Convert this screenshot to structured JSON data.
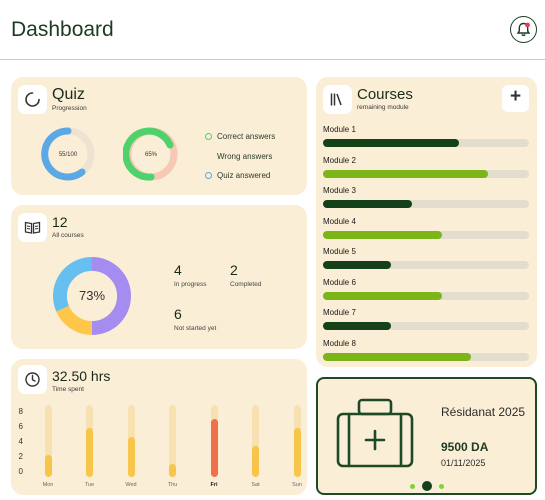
{
  "header": {
    "title": "Dashboard",
    "notification_icon": "bell-icon"
  },
  "quiz": {
    "title": "Quiz",
    "subtitle": "Progression",
    "ring1_label": "55/100",
    "ring2_label": "65%",
    "legend": [
      "Correct answers",
      "Wrong answers",
      "Quiz answered"
    ],
    "colors": {
      "correct": "#4fd26b",
      "wrong": "#f6c9b6",
      "answered": "#5aa9e6"
    }
  },
  "courses_summary": {
    "count": "12",
    "subtitle": "All courses",
    "donut_center": "73%",
    "in_progress_value": "4",
    "in_progress_label": "In progress",
    "completed_value": "2",
    "completed_label": "Completed",
    "not_started_value": "6",
    "not_started_label": "Not started yet"
  },
  "time": {
    "title": "32.50 hrs",
    "subtitle": "Time spent",
    "yticks": [
      "8",
      "6",
      "4",
      "2",
      "0"
    ],
    "days": [
      "Mon",
      "Tue",
      "Wed",
      "Thu",
      "Fri",
      "Sat",
      "Sun"
    ],
    "values": [
      2.5,
      5.5,
      4.5,
      1.5,
      6.5,
      3.5,
      5.5
    ],
    "active_day_index": 4
  },
  "courses": {
    "title": "Courses",
    "subtitle": "remaining module",
    "modules": [
      {
        "label": "Module 1",
        "progress": 0.66,
        "color": "#14401a"
      },
      {
        "label": "Module 2",
        "progress": 0.8,
        "color": "#7cb518"
      },
      {
        "label": "Module 3",
        "progress": 0.43,
        "color": "#14401a"
      },
      {
        "label": "Module 4",
        "progress": 0.58,
        "color": "#7cb518"
      },
      {
        "label": "Module 5",
        "progress": 0.33,
        "color": "#14401a"
      },
      {
        "label": "Module 6",
        "progress": 0.58,
        "color": "#7cb518"
      },
      {
        "label": "Module 7",
        "progress": 0.33,
        "color": "#14401a"
      },
      {
        "label": "Module 8",
        "progress": 0.72,
        "color": "#7cb518"
      }
    ]
  },
  "promo": {
    "title": "Résidanat 2025",
    "price": "9500 DA",
    "date": "01/11/2025",
    "icon": "medical-bag-icon",
    "active_slide": 1
  }
}
